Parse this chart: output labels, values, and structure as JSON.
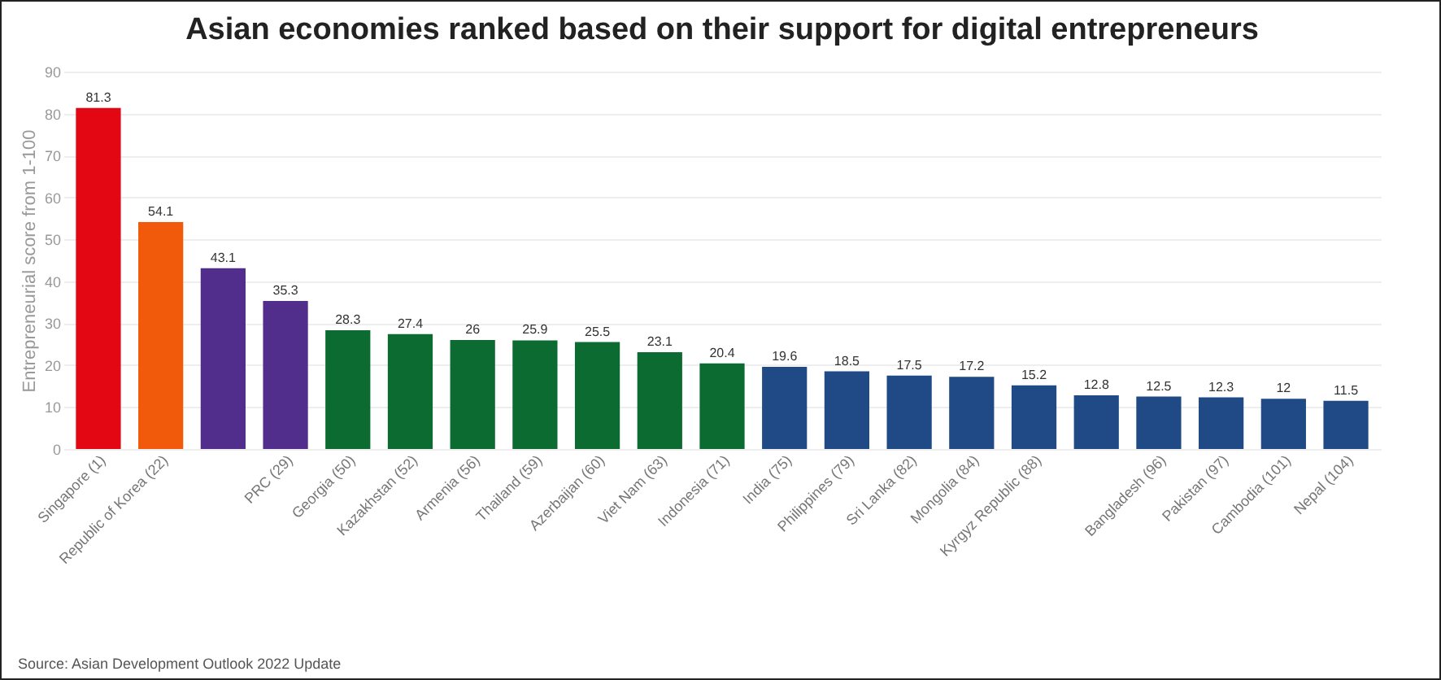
{
  "chart_data": {
    "type": "bar",
    "title": "Asian economies ranked based on their support for digital entrepreneurs",
    "ylabel": "Entrepreneurial score from 1-100",
    "categories": [
      "Singapore (1)",
      "Republic of Korea (22)",
      null,
      "PRC (29)",
      "Georgia (50)",
      "Kazakhstan (52)",
      "Armenia (56)",
      "Thailand (59)",
      "Azerbaijan (60)",
      "Viet Nam (63)",
      "Indonesia (71)",
      "India (75)",
      "Philippines (79)",
      "Sri Lanka (82)",
      "Mongolia (84)",
      "Kyrgyz Republic (88)",
      null,
      "Bangladesh (96)",
      "Pakistan (97)",
      "Cambodia (101)",
      "Nepal (104)"
    ],
    "values": [
      81.3,
      54.1,
      43.1,
      35.3,
      28.3,
      27.4,
      26,
      25.9,
      25.5,
      23.1,
      20.4,
      19.6,
      18.5,
      17.5,
      17.2,
      15.2,
      12.8,
      12.5,
      12.3,
      12,
      11.5
    ],
    "colors": [
      "#e30613",
      "#f05a0a",
      "#512d8c",
      "#512d8c",
      "#0b6b30",
      "#0b6b30",
      "#0b6b30",
      "#0b6b30",
      "#0b6b30",
      "#0b6b30",
      "#0b6b30",
      "#1f4a86",
      "#1f4a86",
      "#1f4a86",
      "#1f4a86",
      "#1f4a86",
      "#1f4a86",
      "#1f4a86",
      "#1f4a86",
      "#1f4a86",
      "#1f4a86"
    ],
    "ylim": [
      0,
      90
    ],
    "yticks": [
      0,
      10,
      20,
      30,
      40,
      50,
      60,
      70,
      80,
      90
    ],
    "grid": "y",
    "data_labels": true,
    "legend": false,
    "annotations": [
      "Source: Asian Development Outlook 2022 Update"
    ]
  }
}
